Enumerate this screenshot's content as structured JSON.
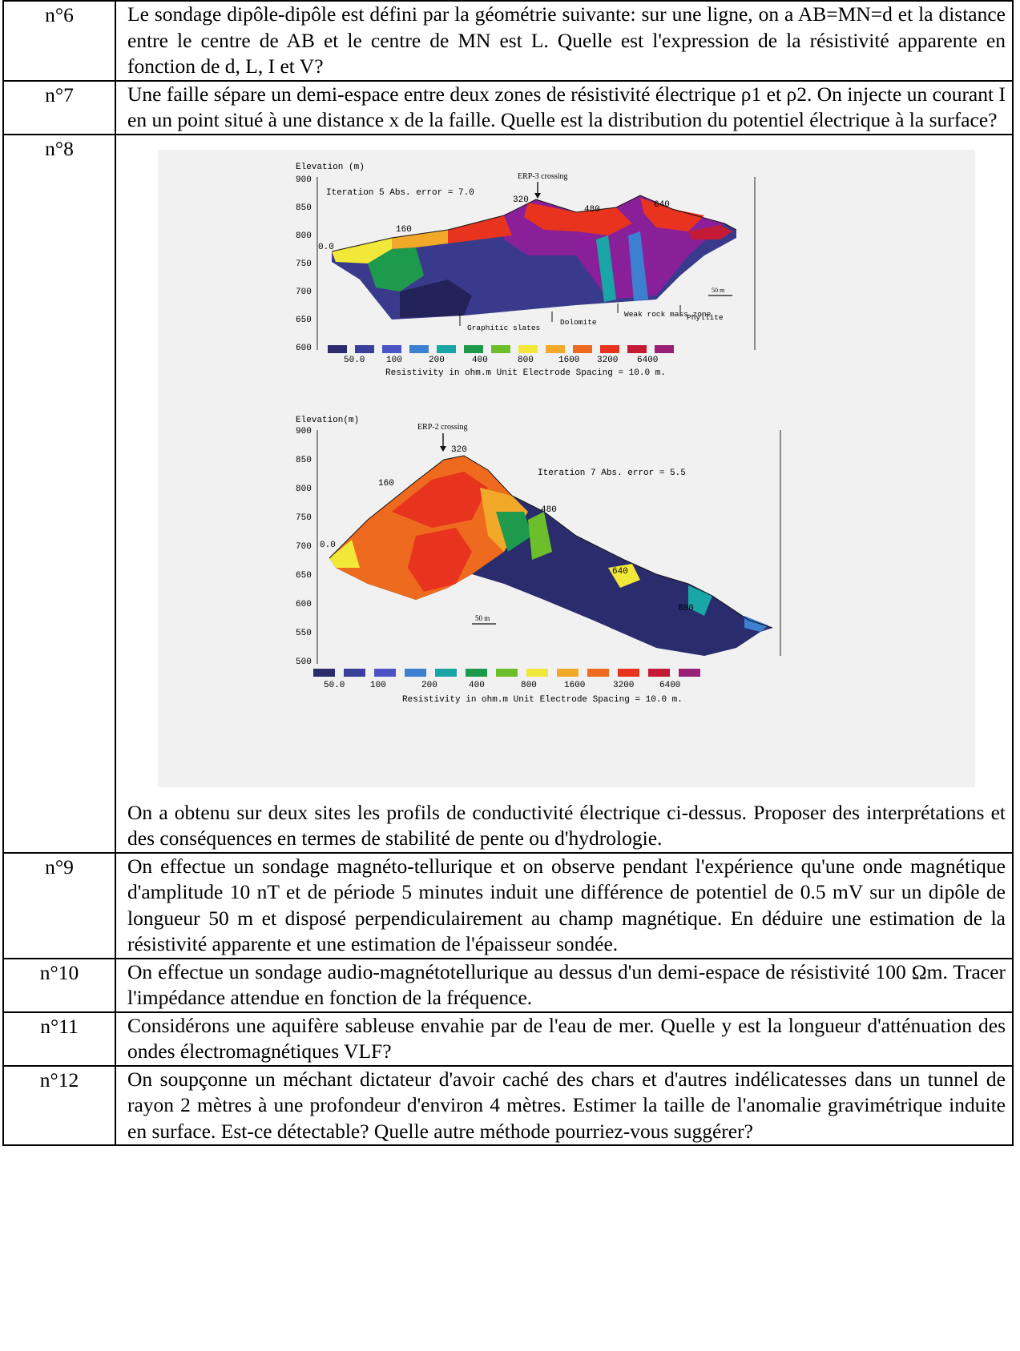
{
  "questions": [
    {
      "num": "n°6",
      "text": "Le sondage dipôle-dipôle est défini par la géométrie suivante: sur une ligne, on a AB=MN=d et la distance entre le centre de AB et le centre de MN est L. Quelle est l'expression de la résistivité apparente en fonction de d, L, I et V?"
    },
    {
      "num": "n°7",
      "text": "Une faille sépare un demi-espace entre deux zones de résistivité électrique ρ1 et ρ2. On injecte un courant I en un point situé à une distance x de la faille. Quelle est la distribution du potentiel électrique à la surface?"
    },
    {
      "num": "n°8",
      "text": "On a obtenu sur deux sites les profils de conductivité électrique ci-dessus. Proposer des interprétations et des conséquences en termes de stabilité de pente ou d'hydrologie."
    },
    {
      "num": "n°9",
      "text": "On effectue un sondage magnéto-tellurique et on observe pendant l'expérience qu'une onde magnétique d'amplitude 10 nT et de période 5 minutes induit une différence de potentiel de 0.5 mV sur un dipôle de longueur 50 m et disposé perpendiculairement au champ magnétique. En déduire une estimation de la résistivité apparente et une estimation de l'épaisseur sondée."
    },
    {
      "num": "n°10",
      "text": "On effectue un sondage audio-magnétotellurique au dessus d'un demi-espace de résistivité 100 Ωm. Tracer l'impédance attendue en fonction de la fréquence."
    },
    {
      "num": "n°11",
      "text": "Considérons une aquifère sableuse envahie par de l'eau de mer. Quelle y est la longueur d'atténuation des ondes électromagnétiques VLF?"
    },
    {
      "num": "n°12",
      "text": "On soupçonne un méchant dictateur d'avoir caché des chars et d'autres indélicatesses dans un tunnel de rayon 2 mètres à une profondeur d'environ 4 mètres. Estimer la taille de l'anomalie gravimétrique induite en surface. Est-ce détectable? Quelle autre méthode pourriez-vous suggérer?"
    }
  ],
  "figure": {
    "profile1": {
      "axis_title": "Elevation (m)",
      "yticks": [
        "900",
        "850",
        "800",
        "750",
        "700",
        "650",
        "600"
      ],
      "crossing": "ERP-3 crossing",
      "iteration": "Iteration 5 Abs. error = 7.0",
      "distance_labels": [
        "0.0",
        "160",
        "320",
        "480",
        "640"
      ],
      "annotations": [
        "Graphitic slates",
        "Dolomite",
        "Weak rock mass zone",
        "Phyllite"
      ],
      "scale_bar": "50 m"
    },
    "profile2": {
      "axis_title": "Elevation(m)",
      "yticks": [
        "900",
        "850",
        "800",
        "750",
        "700",
        "650",
        "600",
        "550",
        "500"
      ],
      "crossing": "ERP-2 crossing",
      "iteration": "Iteration 7 Abs. error = 5.5",
      "distance_labels": [
        "0.0",
        "160",
        "320",
        "480",
        "640",
        "800"
      ],
      "scale_bar": "50 m"
    },
    "legend": {
      "values": [
        "50.0",
        "100",
        "200",
        "400",
        "800",
        "1600",
        "3200",
        "6400"
      ],
      "caption": "Resistivity in ohm.m   Unit Electrode Spacing = 10.0 m.",
      "colors": [
        "#2b2c6e",
        "#3a3f9a",
        "#4b53c6",
        "#3d7fd0",
        "#1aa6a6",
        "#1e9a4c",
        "#6cbf2a",
        "#f2e83a",
        "#f2a92a",
        "#ee6a1e",
        "#e8331e",
        "#c41a35",
        "#9a1f78"
      ]
    }
  }
}
